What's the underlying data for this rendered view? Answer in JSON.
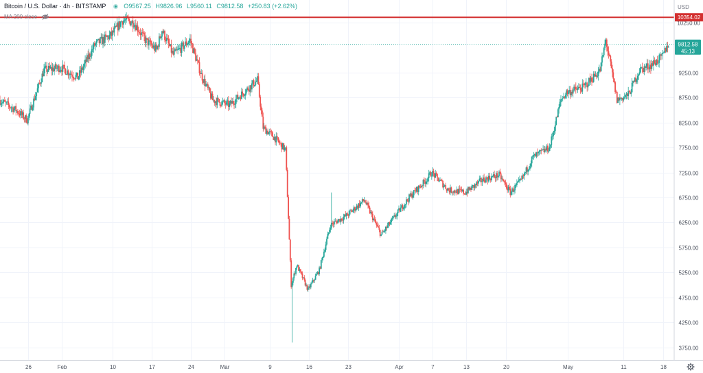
{
  "header": {
    "symbol": "Bitcoin / U.S. Dollar",
    "interval": "4h",
    "exchange": "BITSTAMP",
    "open_label": "O",
    "open": "9567.25",
    "high_label": "H",
    "high": "9826.96",
    "low_label": "L",
    "low": "9560.11",
    "close_label": "C",
    "close": "9812.58",
    "change": "+250.83 (+2.62%)",
    "indicator": "MA 200 close",
    "currency": "USD"
  },
  "colors": {
    "up": "#26a69a",
    "down": "#ef5350",
    "resistance": "#d32f2f",
    "grid": "#f0f3fa",
    "axis_text": "#4c525e"
  },
  "icons": [
    "eye-off-icon",
    "settings-gear-icon"
  ],
  "chart_data": {
    "type": "candlestick",
    "timeframe": "4h",
    "ylim": [
      3500,
      10700
    ],
    "y_ticks": [
      3750,
      4250,
      4750,
      5250,
      5750,
      6250,
      6750,
      7250,
      7750,
      8250,
      8750,
      9250,
      10250
    ],
    "y_tick_labels": [
      "3750.00",
      "4250.00",
      "4750.00",
      "5250.00",
      "5750.00",
      "6250.00",
      "6750.00",
      "7250.00",
      "7750.00",
      "8250.00",
      "8750.00",
      "9250.00",
      "10250.00"
    ],
    "x_ticks": [
      {
        "label": "26",
        "date": "2020-01-26"
      },
      {
        "label": "Feb",
        "date": "2020-02-01"
      },
      {
        "label": "10",
        "date": "2020-02-10"
      },
      {
        "label": "17",
        "date": "2020-02-17"
      },
      {
        "label": "24",
        "date": "2020-02-24"
      },
      {
        "label": "Mar",
        "date": "2020-03-01"
      },
      {
        "label": "9",
        "date": "2020-03-09"
      },
      {
        "label": "16",
        "date": "2020-03-16"
      },
      {
        "label": "23",
        "date": "2020-03-23"
      },
      {
        "label": "Apr",
        "date": "2020-04-01"
      },
      {
        "label": "7",
        "date": "2020-04-07"
      },
      {
        "label": "13",
        "date": "2020-04-13"
      },
      {
        "label": "20",
        "date": "2020-04-20"
      },
      {
        "label": "May",
        "date": "2020-05-01"
      },
      {
        "label": "11",
        "date": "2020-05-11"
      },
      {
        "label": "18",
        "date": "2020-05-18"
      }
    ],
    "trend": [
      [
        "2020-01-21",
        8700
      ],
      [
        "2020-01-24",
        8500
      ],
      [
        "2020-01-26",
        8300
      ],
      [
        "2020-01-29",
        9300
      ],
      [
        "2020-02-01",
        9350
      ],
      [
        "2020-02-04",
        9150
      ],
      [
        "2020-02-07",
        9800
      ],
      [
        "2020-02-10",
        10000
      ],
      [
        "2020-02-12",
        10300
      ],
      [
        "2020-02-14",
        10250
      ],
      [
        "2020-02-16",
        9900
      ],
      [
        "2020-02-18",
        9700
      ],
      [
        "2020-02-19",
        10100
      ],
      [
        "2020-02-21",
        9600
      ],
      [
        "2020-02-24",
        9900
      ],
      [
        "2020-02-26",
        9200
      ],
      [
        "2020-02-28",
        8700
      ],
      [
        "2020-03-02",
        8600
      ],
      [
        "2020-03-04",
        8800
      ],
      [
        "2020-03-07",
        9100
      ],
      [
        "2020-03-08",
        8150
      ],
      [
        "2020-03-10",
        7950
      ],
      [
        "2020-03-12",
        7700
      ],
      [
        "2020-03-13",
        5000
      ],
      [
        "2020-03-14",
        5400
      ],
      [
        "2020-03-16",
        4900
      ],
      [
        "2020-03-18",
        5300
      ],
      [
        "2020-03-20",
        6200
      ],
      [
        "2020-03-23",
        6400
      ],
      [
        "2020-03-26",
        6700
      ],
      [
        "2020-03-29",
        6000
      ],
      [
        "2020-04-01",
        6450
      ],
      [
        "2020-04-03",
        6750
      ],
      [
        "2020-04-06",
        7100
      ],
      [
        "2020-04-07",
        7250
      ],
      [
        "2020-04-10",
        6900
      ],
      [
        "2020-04-13",
        6850
      ],
      [
        "2020-04-16",
        7100
      ],
      [
        "2020-04-19",
        7200
      ],
      [
        "2020-04-21",
        6850
      ],
      [
        "2020-04-23",
        7100
      ],
      [
        "2020-04-25",
        7550
      ],
      [
        "2020-04-28",
        7750
      ],
      [
        "2020-04-30",
        8700
      ],
      [
        "2020-05-01",
        8850
      ],
      [
        "2020-05-04",
        8950
      ],
      [
        "2020-05-07",
        9300
      ],
      [
        "2020-05-08",
        9900
      ],
      [
        "2020-05-10",
        8700
      ],
      [
        "2020-05-12",
        8800
      ],
      [
        "2020-05-14",
        9300
      ],
      [
        "2020-05-16",
        9400
      ],
      [
        "2020-05-18",
        9550
      ],
      [
        "2020-05-19",
        9812
      ]
    ],
    "crash_extremes": {
      "date": "2020-03-13",
      "low": 3850,
      "spike_high_date": "2020-03-20",
      "spike_high": 6850
    },
    "horizontal_lines": [
      {
        "name": "resistance",
        "price": 10354.02,
        "label": "10354.02",
        "color": "#d32f2f"
      }
    ],
    "last_price": {
      "price": 9812.58,
      "label": "9812.58",
      "countdown": "45:13"
    }
  }
}
